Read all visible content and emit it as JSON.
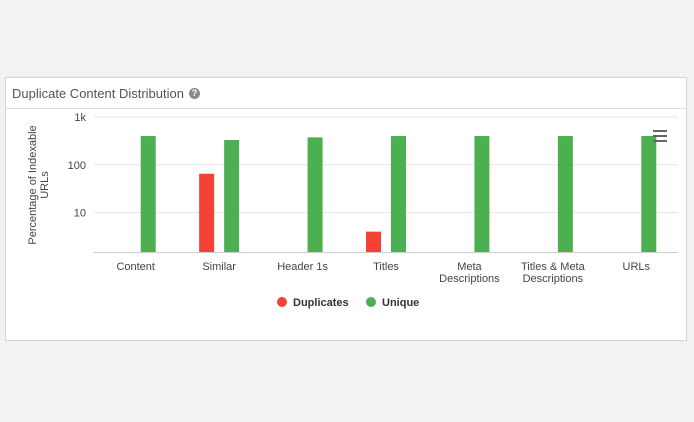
{
  "panel": {
    "title": "Duplicate Content Distribution",
    "help_icon": "question-circle-icon",
    "menu_icon": "hamburger-menu-icon"
  },
  "chart_data": {
    "type": "bar",
    "categories": [
      "Content",
      "Similar",
      "Header 1s",
      "Titles",
      "Meta Descriptions",
      "Titles & Meta Descriptions",
      "URLs"
    ],
    "category_lines": [
      [
        "Content"
      ],
      [
        "Similar"
      ],
      [
        "Header 1s"
      ],
      [
        "Titles"
      ],
      [
        "Meta",
        "Descriptions"
      ],
      [
        "Titles & Meta",
        "Descriptions"
      ],
      [
        "URLs"
      ]
    ],
    "series": [
      {
        "name": "Duplicates",
        "color": "#f44336",
        "values": [
          null,
          65,
          null,
          4,
          null,
          null,
          null
        ]
      },
      {
        "name": "Unique",
        "color": "#4caf50",
        "values": [
          400,
          330,
          375,
          400,
          400,
          400,
          400
        ]
      }
    ],
    "y_scale": "log",
    "ylim": [
      1.5,
      1000
    ],
    "yticks": [
      {
        "value": 10,
        "label": "10"
      },
      {
        "value": 100,
        "label": "100"
      },
      {
        "value": 1000,
        "label": "1k"
      }
    ],
    "ylabel": "Percentage of Indexable URLs",
    "ylabel_lines": [
      "Percentage of Indexable",
      "URLs"
    ],
    "xlabel": "",
    "grid": true,
    "legend_position": "bottom"
  }
}
